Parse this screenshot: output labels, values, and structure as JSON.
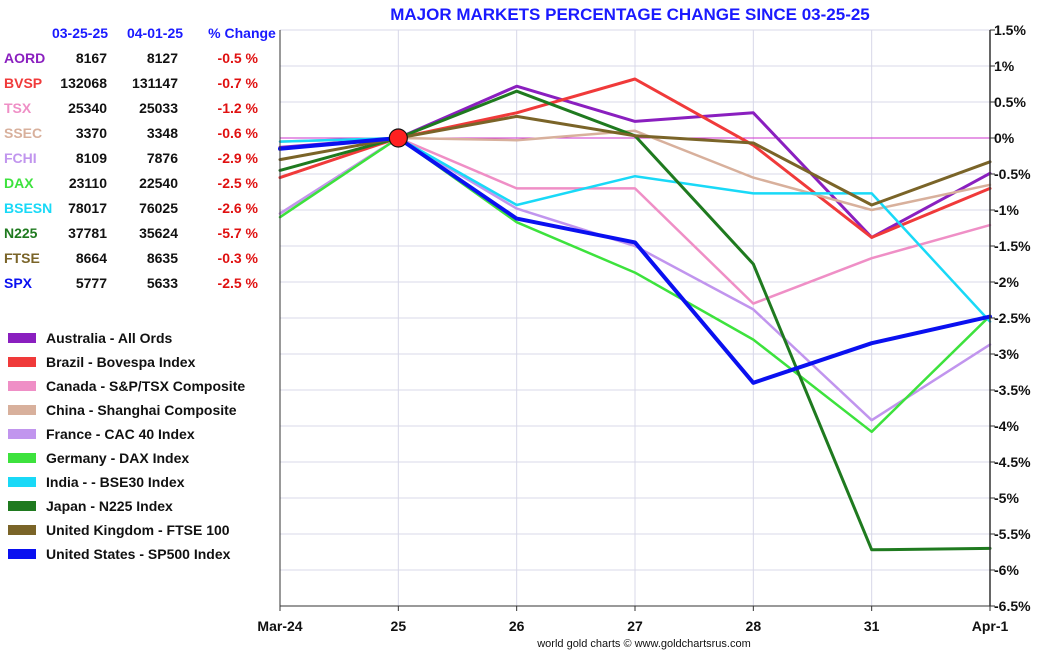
{
  "chart_data": {
    "type": "line",
    "title": "MAJOR MARKETS PERCENTAGE CHANGE SINCE 03-25-25",
    "credit": "world gold charts © www.goldchartsrus.com",
    "categories": [
      "Mar-24",
      "25",
      "26",
      "27",
      "28",
      "31",
      "Apr-1"
    ],
    "ylim": [
      -6.5,
      1.5
    ],
    "y_ticks": [
      {
        "v": 1.5,
        "label": "1.5%"
      },
      {
        "v": 1,
        "label": "1%"
      },
      {
        "v": 0.5,
        "label": "0.5%"
      },
      {
        "v": 0,
        "label": "0%"
      },
      {
        "v": -0.5,
        "label": "-0.5%"
      },
      {
        "v": -1,
        "label": "-1%"
      },
      {
        "v": -1.5,
        "label": "-1.5%"
      },
      {
        "v": -2,
        "label": "-2%"
      },
      {
        "v": -2.5,
        "label": "-2.5%"
      },
      {
        "v": -3,
        "label": "-3%"
      },
      {
        "v": -3.5,
        "label": "-3.5%"
      },
      {
        "v": -4,
        "label": "-4%"
      },
      {
        "v": -4.5,
        "label": "-4.5%"
      },
      {
        "v": -5,
        "label": "-5%"
      },
      {
        "v": -5.5,
        "label": "-5.5%"
      },
      {
        "v": -6,
        "label": "-6%"
      },
      {
        "v": -6.5,
        "label": "-6.5%"
      }
    ],
    "reference_line": {
      "value": 0,
      "color": "#cc33cc"
    },
    "base_point": {
      "category": "25",
      "value": 0,
      "color": "#ff2020"
    },
    "table": {
      "headers": [
        "03-25-25",
        "04-01-25",
        "% Change"
      ],
      "header_colors": [
        "#1a1aff",
        "#1a1aff",
        "#1a1aff"
      ],
      "change_color": "#e01010"
    },
    "series": [
      {
        "code": "AORD",
        "name": "Australia - All Ords",
        "color": "#8a1fbf",
        "width": 3,
        "start": "8167",
        "end": "8127",
        "change": "-0.5 %",
        "values": [
          -0.13,
          0,
          0.72,
          0.23,
          0.35,
          -1.38,
          -0.49
        ]
      },
      {
        "code": "BVSP",
        "name": "Brazil - Bovespa Index",
        "color": "#f03a3a",
        "width": 3,
        "start": "132068",
        "end": "131147",
        "change": "-0.7 %",
        "values": [
          -0.55,
          0,
          0.35,
          0.82,
          -0.1,
          -1.38,
          -0.7
        ]
      },
      {
        "code": "TSX",
        "name": "Canada - S&P/TSX Composite",
        "color": "#ef8fc6",
        "width": 2.5,
        "start": "25340",
        "end": "25033",
        "change": "-1.2 %",
        "values": [
          -1.05,
          0,
          -0.7,
          -0.7,
          -2.3,
          -1.67,
          -1.21
        ]
      },
      {
        "code": "SSEC",
        "name": "China - Shanghai Composite",
        "color": "#d8b09c",
        "width": 2.5,
        "start": "3370",
        "end": "3348",
        "change": "-0.6 %",
        "values": [
          -0.05,
          0,
          -0.03,
          0.1,
          -0.55,
          -1.0,
          -0.65
        ]
      },
      {
        "code": "FCHI",
        "name": "France - CAC 40 Index",
        "color": "#c195ee",
        "width": 2.5,
        "start": "8109",
        "end": "7876",
        "change": "-2.9 %",
        "values": [
          -1.05,
          0,
          -0.98,
          -1.5,
          -2.38,
          -3.92,
          -2.87
        ]
      },
      {
        "code": "DAX",
        "name": "Germany - DAX Index",
        "color": "#3de23d",
        "width": 2.5,
        "start": "23110",
        "end": "22540",
        "change": "-2.5 %",
        "values": [
          -1.1,
          0,
          -1.17,
          -1.87,
          -2.8,
          -4.08,
          -2.47
        ]
      },
      {
        "code": "BSESN",
        "name": "India -  - BSE30 Index",
        "color": "#19d9f7",
        "width": 2.5,
        "start": "78017",
        "end": "76025",
        "change": "-2.6 %",
        "values": [
          -0.05,
          0,
          -0.93,
          -0.53,
          -0.77,
          -0.77,
          -2.55
        ]
      },
      {
        "code": "N225",
        "name": "Japan - N225 Index",
        "color": "#1f7a1f",
        "width": 3,
        "start": "37781",
        "end": "35624",
        "change": "-5.7 %",
        "values": [
          -0.45,
          0,
          0.65,
          0.03,
          -1.75,
          -5.72,
          -5.7
        ]
      },
      {
        "code": "FTSE",
        "name": "United Kingdom - FTSE 100",
        "color": "#7a6428",
        "width": 3,
        "start": "8664",
        "end": "8635",
        "change": "-0.3 %",
        "values": [
          -0.3,
          0,
          0.3,
          0.03,
          -0.07,
          -0.93,
          -0.33
        ]
      },
      {
        "code": "SPX",
        "name": "United States - SP500 Index",
        "color": "#0a10f0",
        "width": 4,
        "start": "5777",
        "end": "5633",
        "change": "-2.5 %",
        "values": [
          -0.15,
          0,
          -1.12,
          -1.45,
          -3.4,
          -2.85,
          -2.48
        ]
      }
    ]
  }
}
